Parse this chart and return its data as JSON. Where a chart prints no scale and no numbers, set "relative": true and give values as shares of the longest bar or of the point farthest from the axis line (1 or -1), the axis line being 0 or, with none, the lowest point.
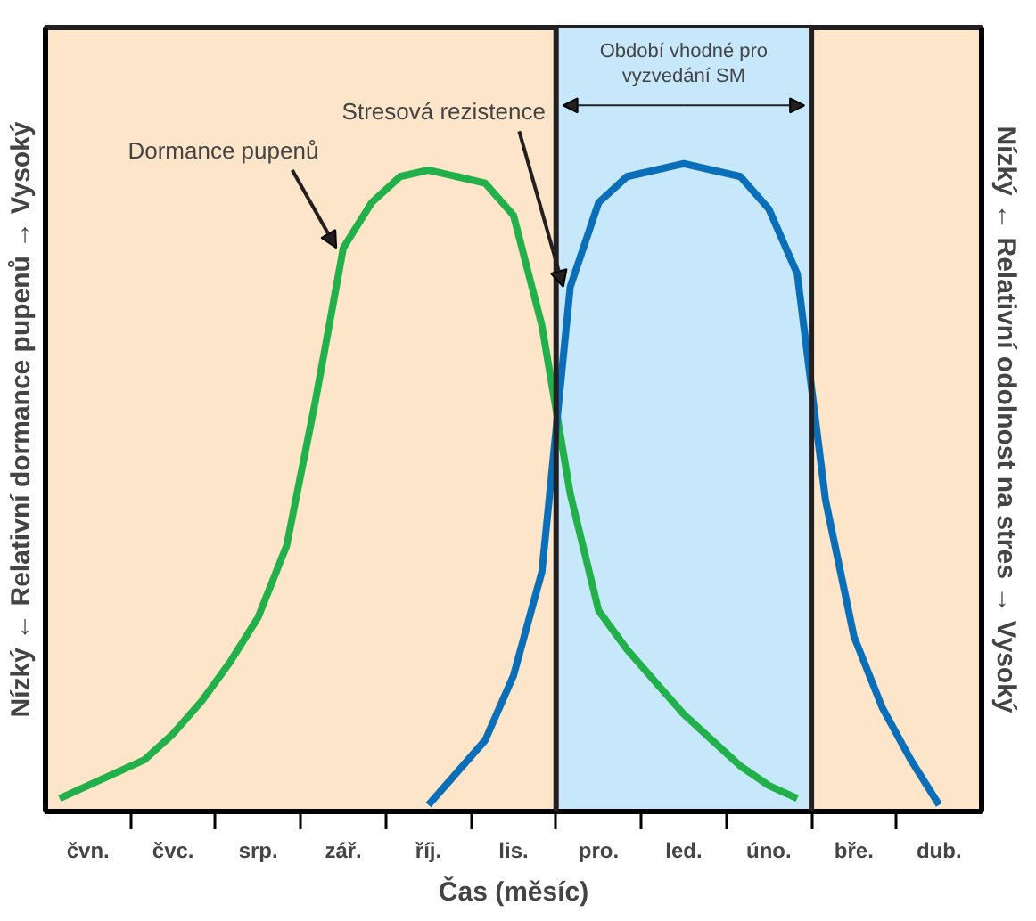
{
  "chart_data": {
    "type": "line",
    "relative": true,
    "xlabel": "Čas (měsíc)",
    "ylabel": "Nízký ← Relativní dormance pupenů → Vysoký",
    "y2label": "Nízký ← Relativní odolnost na stres → Vysoký",
    "categories": [
      null,
      "čvn.",
      null,
      null,
      "čvc.",
      null,
      null,
      "srp.",
      null,
      null,
      "zář.",
      null,
      null,
      "říj.",
      null,
      null,
      "lis.",
      null,
      null,
      "pro.",
      null,
      null,
      "led.",
      null,
      null,
      "úno.",
      null,
      null,
      "bře.",
      null,
      null,
      "dub.",
      null
    ],
    "series": [
      {
        "name": "Dormance pupenů",
        "color": "#22b04b",
        "values": [
          0.02,
          0.04,
          0.06,
          0.08,
          0.12,
          0.17,
          0.23,
          0.3,
          0.41,
          0.63,
          0.87,
          0.94,
          0.98,
          0.99,
          0.98,
          0.97,
          0.92,
          0.75,
          0.49,
          0.31,
          0.25,
          0.2,
          0.15,
          0.11,
          0.07,
          0.04,
          0.02,
          null,
          null,
          null,
          null,
          null,
          null
        ]
      },
      {
        "name": "Stresová rezistence",
        "color": "#0a6fb8",
        "values": [
          null,
          null,
          null,
          null,
          null,
          null,
          null,
          null,
          null,
          null,
          null,
          null,
          null,
          0.01,
          0.06,
          0.11,
          0.21,
          0.37,
          0.81,
          0.94,
          0.98,
          0.99,
          1.0,
          0.99,
          0.98,
          0.93,
          0.83,
          0.48,
          0.27,
          0.16,
          0.08,
          0.01,
          null
        ]
      }
    ],
    "annotations": [
      "Období vhodné pro vyzvedání SM"
    ],
    "grid": false,
    "legend": false,
    "marker": "none",
    "line_style": "solid"
  }
}
